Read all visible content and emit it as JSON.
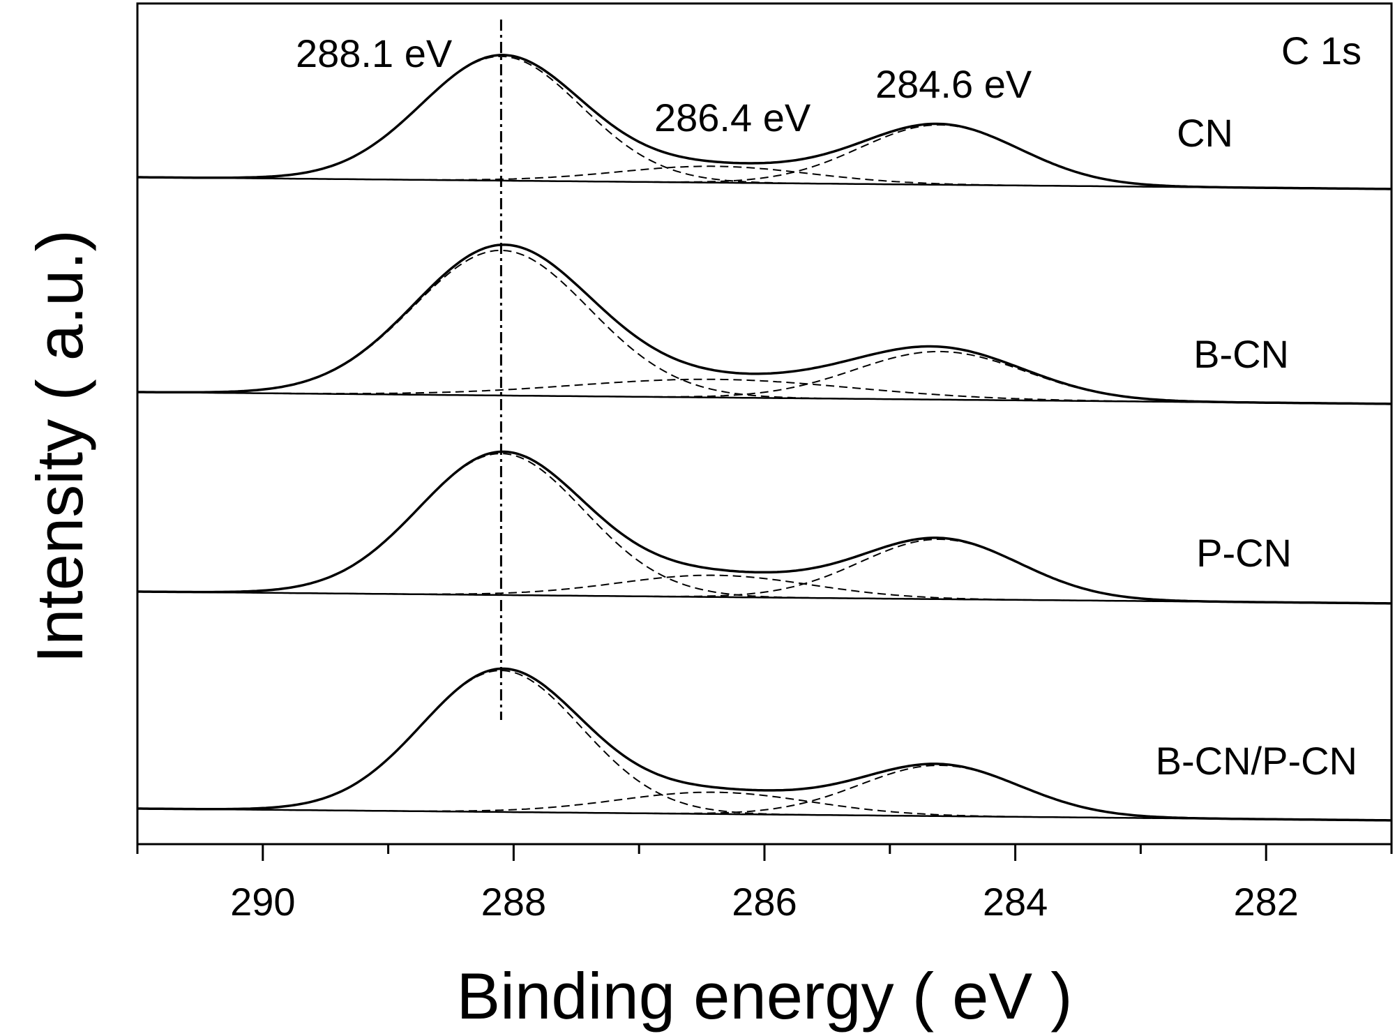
{
  "chart_data": {
    "type": "line",
    "title": "",
    "xlabel": "Binding energy ( eV )",
    "ylabel": "Intensity ( a.u.)",
    "xlim": [
      291,
      281
    ],
    "x_reversed": true,
    "x_ticks": [
      290,
      288,
      286,
      284,
      282
    ],
    "x_tick_labels": [
      "290",
      "288",
      "286",
      "284",
      "282"
    ],
    "y_scale": "arbitrary units, stacked (offset) spectra, no numeric ticks",
    "grid": false,
    "legend": "none",
    "annotations": {
      "panel_label": "C 1s",
      "peak_labels": [
        "288.1 eV",
        "286.4 eV",
        "284.6 eV"
      ],
      "reference_line_x": 288.1,
      "reference_line_style": "dash-dot vertical"
    },
    "series": [
      {
        "name": "CN",
        "baseline": [
          [
            291,
            0.0
          ],
          [
            281,
            -0.013
          ]
        ],
        "peaks": [
          {
            "center": 288.1,
            "height": 0.137,
            "fwhm": 1.5
          },
          {
            "center": 286.4,
            "height": 0.018,
            "fwhm": 1.8
          },
          {
            "center": 284.6,
            "height": 0.066,
            "fwhm": 1.5
          }
        ]
      },
      {
        "name": "B-CN",
        "baseline": [
          [
            291,
            0.0
          ],
          [
            281,
            -0.013
          ]
        ],
        "peaks": [
          {
            "center": 288.1,
            "height": 0.16,
            "fwhm": 1.65
          },
          {
            "center": 286.4,
            "height": 0.02,
            "fwhm": 2.6
          },
          {
            "center": 284.6,
            "height": 0.053,
            "fwhm": 1.6
          }
        ]
      },
      {
        "name": "P-CN",
        "baseline": [
          [
            291,
            0.0
          ],
          [
            281,
            -0.013
          ]
        ],
        "peaks": [
          {
            "center": 288.1,
            "height": 0.156,
            "fwhm": 1.55
          },
          {
            "center": 286.4,
            "height": 0.024,
            "fwhm": 1.8
          },
          {
            "center": 284.6,
            "height": 0.066,
            "fwhm": 1.5
          }
        ]
      },
      {
        "name": "B-CN/P-CN",
        "baseline": [
          [
            291,
            0.0
          ],
          [
            281,
            -0.013
          ]
        ],
        "peaks": [
          {
            "center": 288.1,
            "height": 0.156,
            "fwhm": 1.5
          },
          {
            "center": 286.4,
            "height": 0.024,
            "fwhm": 1.8
          },
          {
            "center": 284.6,
            "height": 0.056,
            "fwhm": 1.5
          }
        ]
      }
    ]
  }
}
